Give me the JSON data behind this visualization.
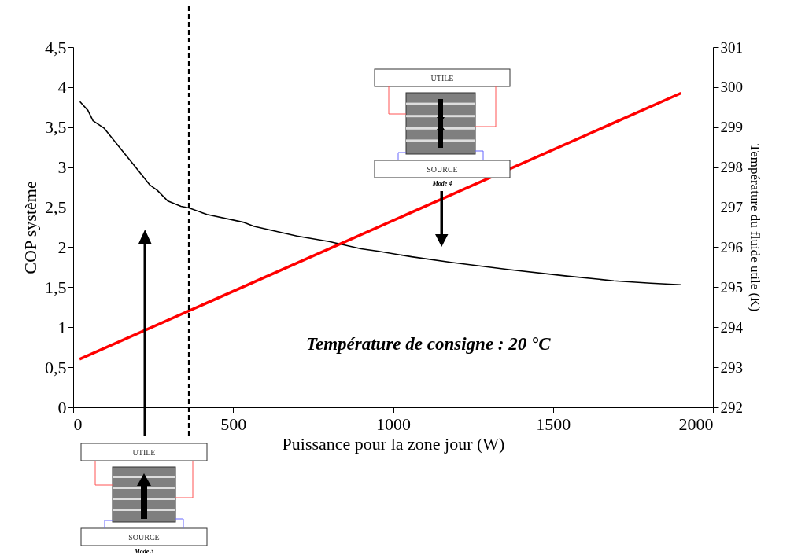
{
  "chart_data": {
    "type": "line",
    "xlabel": "Puissance pour la zone jour (W)",
    "ylabel": "COP système",
    "y2label": "Température du fluide utile (K)",
    "xlim": [
      0,
      2000
    ],
    "xticks": [
      0,
      500,
      1000,
      1500,
      2000
    ],
    "ylim": [
      0,
      4.5
    ],
    "yticks": [
      0,
      {
        "value": 0.5,
        "label": "0,5"
      },
      1,
      {
        "value": 1.5,
        "label": "1,5"
      },
      2,
      {
        "value": 2.5,
        "label": "2,5"
      },
      3,
      {
        "value": 3.5,
        "label": "3,5"
      },
      4,
      {
        "value": 4.5,
        "label": "4,5"
      }
    ],
    "y2lim": [
      292,
      301
    ],
    "y2ticks": [
      292,
      293,
      294,
      295,
      296,
      297,
      298,
      299,
      300,
      301
    ],
    "series": [
      {
        "color": "#000000",
        "x": [
          21,
          46,
          62,
          96,
          165,
          185,
          239,
          263,
          295,
          337,
          362,
          418,
          534,
          566,
          699,
          800,
          900,
          952,
          1058,
          1181,
          1363,
          1542,
          1690,
          1805,
          1899
        ],
        "values": [
          3.82,
          3.71,
          3.58,
          3.49,
          3.15,
          3.05,
          2.78,
          2.71,
          2.58,
          2.51,
          2.49,
          2.41,
          2.31,
          2.26,
          2.14,
          2.07,
          1.98,
          1.95,
          1.88,
          1.81,
          1.72,
          1.64,
          1.58,
          1.55,
          1.53
        ]
      },
      {
        "color": "#ff0000",
        "axis": "y2",
        "x": [
          20,
          1900
        ],
        "values": [
          293.2,
          299.85
        ]
      }
    ],
    "ref_lines": [
      {
        "axis": "x",
        "value": 362,
        "color": "#000000",
        "line_style": "dashed"
      }
    ],
    "annotations": [
      "Température de consigne : 20 °C",
      "UTILE",
      "SOURCE",
      "Mode 4",
      "UTILE",
      "SOURCE",
      "Mode 3"
    ],
    "grid": false
  }
}
